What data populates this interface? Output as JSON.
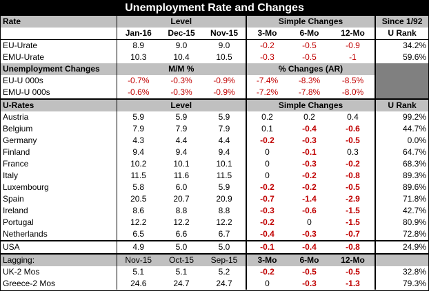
{
  "title": "Unemployment Rate and Changes",
  "rate_section": {
    "header": {
      "rate": "Rate",
      "level": "Level",
      "simple_changes": "Simple Changes",
      "since": "Since 1/92"
    },
    "subheader": {
      "c1": "Jan-16",
      "c2": "Dec-15",
      "c3": "Nov-15",
      "c4": "3-Mo",
      "c5": "6-Mo",
      "c6": "12-Mo",
      "c7": "U Rank"
    },
    "rows": [
      {
        "name": "EU-Urate",
        "v": [
          "8.9",
          "9.0",
          "9.0",
          "-0.2",
          "-0.5",
          "-0.9",
          "34.2%"
        ]
      },
      {
        "name": "EMU-Urate",
        "v": [
          "10.3",
          "10.4",
          "10.5",
          "-0.3",
          "-0.5",
          "-1",
          "59.6%"
        ]
      }
    ]
  },
  "changes_section": {
    "header": {
      "label": "Unemployment Changes",
      "mm": "M/M %",
      "ar": "% Changes (AR)"
    },
    "rows": [
      {
        "name": "EU-U 000s",
        "v": [
          "-0.7%",
          "-0.3%",
          "-0.9%",
          "-7.4%",
          "-8.3%",
          "-8.5%"
        ]
      },
      {
        "name": "EMU-U 000s",
        "v": [
          "-0.6%",
          "-0.3%",
          "-0.9%",
          "-7.2%",
          "-7.8%",
          "-8.0%"
        ]
      }
    ]
  },
  "urates_section": {
    "header": {
      "label": "U-Rates",
      "level": "Level",
      "simple_changes": "Simple Changes",
      "rank": "U Rank"
    },
    "rows": [
      {
        "name": "Austria",
        "v": [
          "5.9",
          "5.9",
          "5.9",
          "0.2",
          "0.2",
          "0.4",
          "99.2%"
        ]
      },
      {
        "name": "Belgium",
        "v": [
          "7.9",
          "7.9",
          "7.9",
          "0.1",
          "-0.4",
          "-0.6",
          "44.7%"
        ]
      },
      {
        "name": "Germany",
        "v": [
          "4.3",
          "4.4",
          "4.4",
          "-0.2",
          "-0.3",
          "-0.5",
          "0.0%"
        ]
      },
      {
        "name": "Finland",
        "v": [
          "9.4",
          "9.4",
          "9.4",
          "0",
          "-0.1",
          "0.3",
          "64.7%"
        ]
      },
      {
        "name": "France",
        "v": [
          "10.2",
          "10.1",
          "10.1",
          "0",
          "-0.3",
          "-0.2",
          "68.3%"
        ]
      },
      {
        "name": "Italy",
        "v": [
          "11.5",
          "11.6",
          "11.5",
          "0",
          "-0.2",
          "-0.8",
          "89.3%"
        ]
      },
      {
        "name": "Luxembourg",
        "v": [
          "5.8",
          "6.0",
          "5.9",
          "-0.2",
          "-0.2",
          "-0.5",
          "89.6%"
        ]
      },
      {
        "name": "Spain",
        "v": [
          "20.5",
          "20.7",
          "20.9",
          "-0.7",
          "-1.4",
          "-2.9",
          "71.8%"
        ]
      },
      {
        "name": "Ireland",
        "v": [
          "8.6",
          "8.8",
          "8.8",
          "-0.3",
          "-0.6",
          "-1.5",
          "42.7%"
        ]
      },
      {
        "name": "Portugal",
        "v": [
          "12.2",
          "12.2",
          "12.2",
          "-0.2",
          "0",
          "-1.5",
          "80.9%"
        ]
      },
      {
        "name": "Netherlands",
        "v": [
          "6.5",
          "6.6",
          "6.7",
          "-0.4",
          "-0.3",
          "-0.7",
          "72.8%"
        ]
      }
    ],
    "usa": {
      "name": "USA",
      "v": [
        "4.9",
        "5.0",
        "5.0",
        "-0.1",
        "-0.4",
        "-0.8",
        "24.9%"
      ]
    }
  },
  "lagging_section": {
    "header": {
      "label": "Lagging:",
      "c1": "Nov-15",
      "c2": "Oct-15",
      "c3": "Sep-15",
      "c4": "3-Mo",
      "c5": "6-Mo",
      "c6": "12-Mo"
    },
    "rows": [
      {
        "name": "UK-2 Mos",
        "v": [
          "5.1",
          "5.1",
          "5.2",
          "-0.2",
          "-0.5",
          "-0.5",
          "32.8%"
        ]
      },
      {
        "name": "Greece-2 Mos",
        "v": [
          "24.6",
          "24.7",
          "24.7",
          "0",
          "-0.3",
          "-1.3",
          "79.3%"
        ]
      }
    ]
  }
}
